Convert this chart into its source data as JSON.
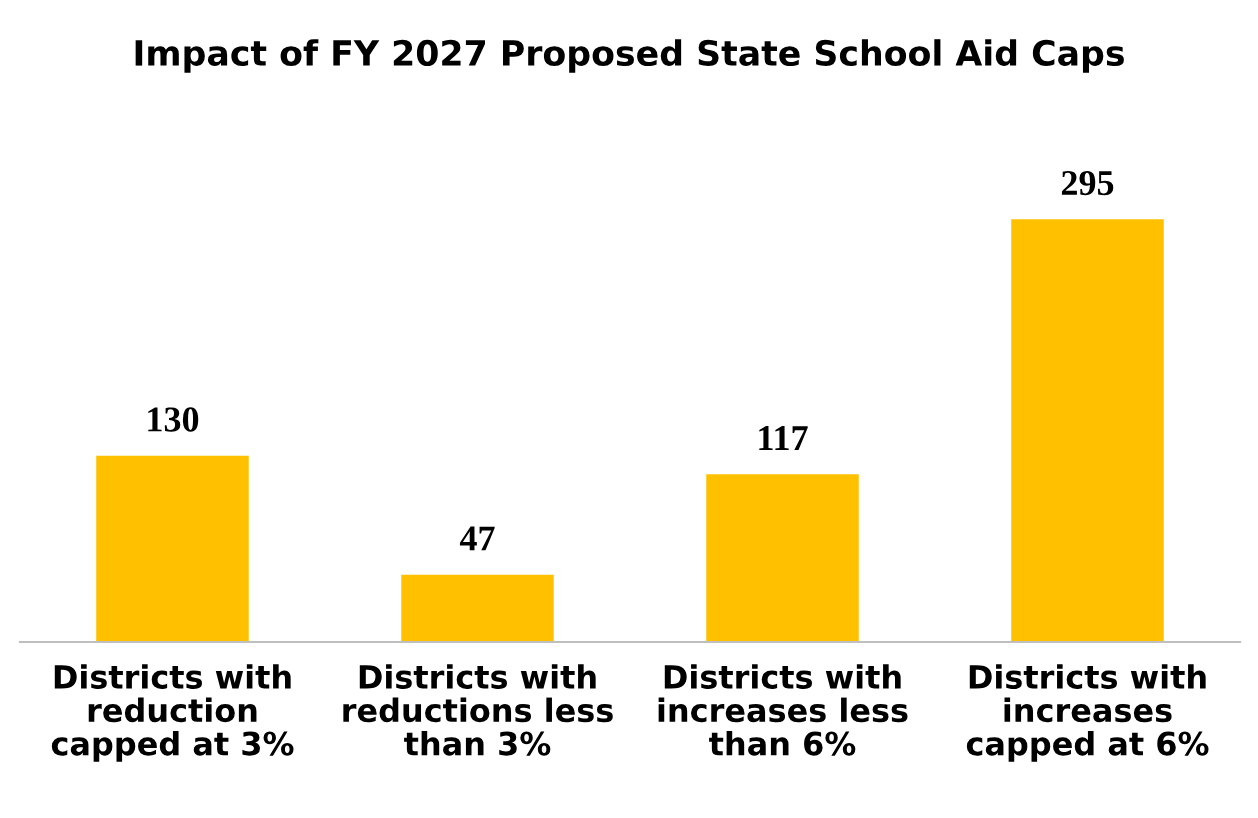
{
  "chart_data": {
    "type": "bar",
    "title": "Impact of FY 2027 Proposed State School Aid Caps",
    "categories": [
      "Districts with\nreduction\ncapped at 3%",
      "Districts with\nreductions less\nthan 3%",
      "Districts with\nincreases less\nthan 6%",
      "Districts with\nincreases\ncapped at 6%"
    ],
    "values": [
      130,
      47,
      117,
      295
    ],
    "color": "#ffc000",
    "data_labels": true,
    "grid": false,
    "legend": false
  }
}
